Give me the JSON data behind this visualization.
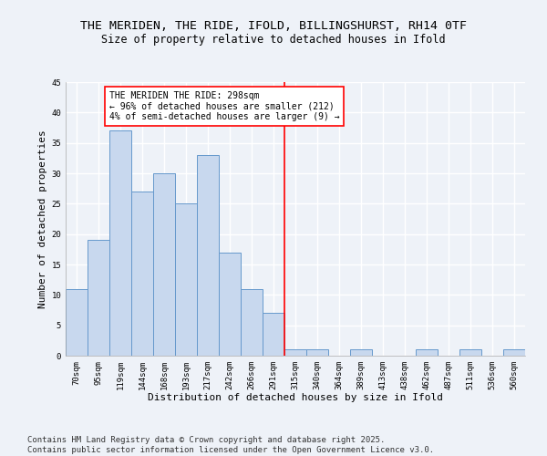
{
  "title": "THE MERIDEN, THE RIDE, IFOLD, BILLINGSHURST, RH14 0TF",
  "subtitle": "Size of property relative to detached houses in Ifold",
  "categories": [
    "70sqm",
    "95sqm",
    "119sqm",
    "144sqm",
    "168sqm",
    "193sqm",
    "217sqm",
    "242sqm",
    "266sqm",
    "291sqm",
    "315sqm",
    "340sqm",
    "364sqm",
    "389sqm",
    "413sqm",
    "438sqm",
    "462sqm",
    "487sqm",
    "511sqm",
    "536sqm",
    "560sqm"
  ],
  "values": [
    11,
    19,
    37,
    27,
    30,
    25,
    33,
    17,
    11,
    7,
    1,
    1,
    0,
    1,
    0,
    0,
    1,
    0,
    1,
    0,
    1
  ],
  "bar_color": "#c8d8ee",
  "bar_edge_color": "#6699cc",
  "vline_x": 9.5,
  "vline_color": "red",
  "annotation_text": "THE MERIDEN THE RIDE: 298sqm\n← 96% of detached houses are smaller (212)\n4% of semi-detached houses are larger (9) →",
  "annotation_box_color": "white",
  "annotation_box_edge_color": "red",
  "xlabel": "Distribution of detached houses by size in Ifold",
  "ylabel": "Number of detached properties",
  "ylim": [
    0,
    45
  ],
  "yticks": [
    0,
    5,
    10,
    15,
    20,
    25,
    30,
    35,
    40,
    45
  ],
  "footer_line1": "Contains HM Land Registry data © Crown copyright and database right 2025.",
  "footer_line2": "Contains public sector information licensed under the Open Government Licence v3.0.",
  "background_color": "#eef2f8",
  "grid_color": "white",
  "title_fontsize": 9.5,
  "subtitle_fontsize": 8.5,
  "tick_fontsize": 6.5,
  "label_fontsize": 8,
  "footer_fontsize": 6.5,
  "annotation_fontsize": 7.0
}
